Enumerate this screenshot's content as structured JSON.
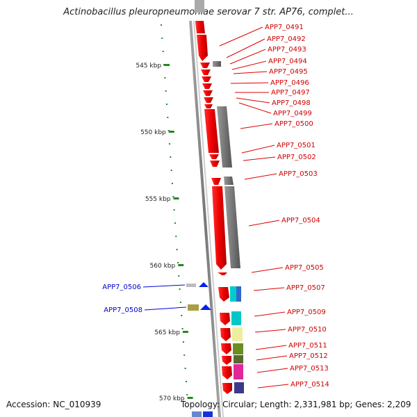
{
  "header": {
    "title": "Actinobacillus pleuropneumoniae serovar 7 str. AP76, complet..."
  },
  "footer": {
    "accession": "Accession: NC_010939",
    "topology": "Topology: Circular; Length: 2,331,981 bp; Genes: 2,209"
  },
  "map": {
    "scale_labels": [
      "545 kbp",
      "550 kbp",
      "555 kbp",
      "560 kbp",
      "565 kbp",
      "570 kbp"
    ],
    "forward_gene_labels": [
      "APP7_0491",
      "APP7_0492",
      "APP7_0493",
      "APP7_0494",
      "APP7_0495",
      "APP7_0496",
      "APP7_0497",
      "APP7_0498",
      "APP7_0499",
      "APP7_0500",
      "APP7_0501",
      "APP7_0502",
      "APP7_0503",
      "APP7_0504",
      "APP7_0505",
      "APP7_0507",
      "APP7_0509",
      "APP7_0510",
      "APP7_0511",
      "APP7_0512",
      "APP7_0513",
      "APP7_0514"
    ],
    "reverse_gene_labels": [
      "APP7_0506",
      "APP7_0508"
    ],
    "colors": {
      "forward_label": "#cc0000",
      "reverse_label": "#0000cc",
      "gene_red": "#ee0000",
      "gene_gray": "#777777",
      "scale_mark": "#228822",
      "backbone": "#888888"
    }
  }
}
